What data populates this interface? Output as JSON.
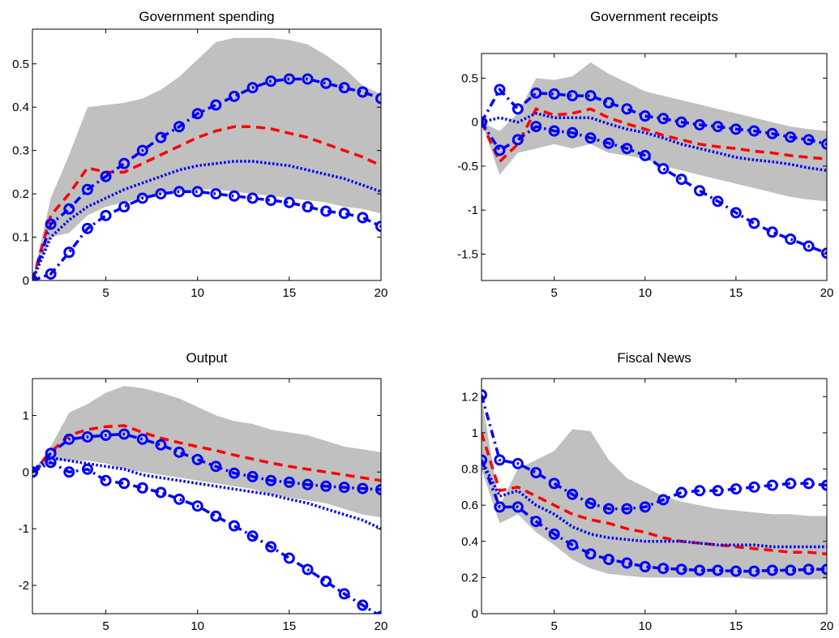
{
  "chart_data": [
    {
      "type": "line",
      "title": "Government spending",
      "xlabel": "",
      "ylabel": "",
      "xlim": [
        1,
        20
      ],
      "ylim": [
        0,
        0.58
      ],
      "xticks": [
        5,
        10,
        15,
        20
      ],
      "yticks": [
        0,
        0.1,
        0.2,
        0.3,
        0.4,
        0.5
      ],
      "ytick_labels": [
        "0",
        "0.1",
        "0.2",
        "0.3",
        "0.4",
        "0.5"
      ],
      "grid": false,
      "legend": "none",
      "x": [
        1,
        2,
        3,
        4,
        5,
        6,
        7,
        8,
        9,
        10,
        11,
        12,
        13,
        14,
        15,
        16,
        17,
        18,
        19,
        20
      ],
      "band": {
        "color": "#c0c0c0",
        "lower": [
          0,
          0.1,
          0.11,
          0.15,
          0.17,
          0.18,
          0.19,
          0.2,
          0.205,
          0.21,
          0.21,
          0.205,
          0.2,
          0.195,
          0.19,
          0.185,
          0.18,
          0.17,
          0.165,
          0.155
        ],
        "upper": [
          0,
          0.19,
          0.29,
          0.4,
          0.405,
          0.41,
          0.42,
          0.44,
          0.47,
          0.51,
          0.55,
          0.56,
          0.56,
          0.56,
          0.555,
          0.545,
          0.52,
          0.49,
          0.45,
          0.43
        ]
      },
      "series": [
        {
          "style": "dashed-red",
          "values": [
            0,
            0.15,
            0.2,
            0.26,
            0.25,
            0.25,
            0.27,
            0.29,
            0.31,
            0.33,
            0.345,
            0.355,
            0.355,
            0.35,
            0.34,
            0.33,
            0.315,
            0.3,
            0.285,
            0.265
          ]
        },
        {
          "style": "dotted-blue",
          "values": [
            0,
            0.1,
            0.14,
            0.17,
            0.19,
            0.21,
            0.225,
            0.24,
            0.255,
            0.265,
            0.27,
            0.275,
            0.275,
            0.27,
            0.265,
            0.255,
            0.245,
            0.235,
            0.22,
            0.205
          ]
        },
        {
          "style": "circle-blue",
          "values": [
            0,
            0.13,
            0.165,
            0.21,
            0.24,
            0.27,
            0.3,
            0.33,
            0.355,
            0.385,
            0.405,
            0.425,
            0.445,
            0.46,
            0.465,
            0.465,
            0.455,
            0.445,
            0.435,
            0.42
          ]
        },
        {
          "style": "circle-blue",
          "values": [
            0,
            0.015,
            0.065,
            0.12,
            0.15,
            0.17,
            0.19,
            0.2,
            0.205,
            0.205,
            0.2,
            0.195,
            0.19,
            0.185,
            0.18,
            0.17,
            0.16,
            0.155,
            0.145,
            0.125
          ]
        }
      ]
    },
    {
      "type": "line",
      "title": "Government receipts",
      "xlabel": "",
      "ylabel": "",
      "xlim": [
        1,
        20
      ],
      "ylim": [
        -1.8,
        0.78
      ],
      "xticks": [
        5,
        10,
        15,
        20
      ],
      "yticks": [
        -1.5,
        -1,
        -0.5,
        0,
        0.5
      ],
      "ytick_labels": [
        "-1.5",
        "-1",
        "-0.5",
        "0",
        "0.5"
      ],
      "grid": false,
      "legend": "none",
      "x": [
        1,
        2,
        3,
        4,
        5,
        6,
        7,
        8,
        9,
        10,
        11,
        12,
        13,
        14,
        15,
        16,
        17,
        18,
        19,
        20
      ],
      "band": {
        "color": "#c0c0c0",
        "lower": [
          0,
          -0.6,
          -0.35,
          -0.3,
          -0.25,
          -0.3,
          -0.25,
          -0.35,
          -0.38,
          -0.42,
          -0.5,
          -0.55,
          -0.6,
          -0.65,
          -0.7,
          -0.75,
          -0.8,
          -0.85,
          -0.88,
          -0.9
        ],
        "upper": [
          0,
          -0.1,
          0.1,
          0.5,
          0.48,
          0.52,
          0.68,
          0.55,
          0.45,
          0.35,
          0.3,
          0.25,
          0.2,
          0.15,
          0.1,
          0.05,
          0.0,
          -0.05,
          -0.08,
          -0.1
        ]
      },
      "series": [
        {
          "style": "dashed-red",
          "values": [
            0,
            -0.45,
            -0.25,
            0.15,
            0.08,
            0.1,
            0.15,
            0.05,
            -0.02,
            -0.08,
            -0.15,
            -0.2,
            -0.25,
            -0.28,
            -0.3,
            -0.33,
            -0.35,
            -0.38,
            -0.4,
            -0.42
          ]
        },
        {
          "style": "dotted-blue",
          "values": [
            0,
            0.05,
            0.0,
            0.1,
            0.05,
            0.05,
            0.05,
            -0.02,
            -0.08,
            -0.12,
            -0.18,
            -0.25,
            -0.3,
            -0.35,
            -0.4,
            -0.43,
            -0.45,
            -0.48,
            -0.52,
            -0.55
          ]
        },
        {
          "style": "circle-blue",
          "values": [
            0,
            0.37,
            0.15,
            0.33,
            0.32,
            0.3,
            0.3,
            0.22,
            0.15,
            0.07,
            0.04,
            0.0,
            -0.03,
            -0.05,
            -0.08,
            -0.1,
            -0.13,
            -0.17,
            -0.2,
            -0.25
          ]
        },
        {
          "style": "circle-blue",
          "values": [
            0,
            -0.32,
            -0.2,
            -0.05,
            -0.1,
            -0.12,
            -0.18,
            -0.24,
            -0.3,
            -0.38,
            -0.53,
            -0.65,
            -0.78,
            -0.9,
            -1.03,
            -1.15,
            -1.25,
            -1.33,
            -1.41,
            -1.49
          ]
        }
      ]
    },
    {
      "type": "line",
      "title": "Output",
      "xlabel": "",
      "ylabel": "",
      "xlim": [
        1,
        20
      ],
      "ylim": [
        -2.5,
        1.65
      ],
      "xticks": [
        5,
        10,
        15,
        20
      ],
      "yticks": [
        -2,
        -1,
        0,
        1
      ],
      "ytick_labels": [
        "-2",
        "-1",
        "0",
        "1"
      ],
      "grid": false,
      "legend": "none",
      "x": [
        1,
        2,
        3,
        4,
        5,
        6,
        7,
        8,
        9,
        10,
        11,
        12,
        13,
        14,
        15,
        16,
        17,
        18,
        19,
        20
      ],
      "band": {
        "color": "#c0c0c0",
        "lower": [
          0,
          0.2,
          0.2,
          0.2,
          0.15,
          0.05,
          0.0,
          -0.05,
          -0.1,
          -0.15,
          -0.2,
          -0.25,
          -0.3,
          -0.4,
          -0.45,
          -0.5,
          -0.55,
          -0.65,
          -0.75,
          -0.8
        ],
        "upper": [
          0,
          0.45,
          1.05,
          1.2,
          1.4,
          1.52,
          1.48,
          1.4,
          1.3,
          1.15,
          1.0,
          0.9,
          0.85,
          0.75,
          0.7,
          0.65,
          0.55,
          0.45,
          0.4,
          0.35
        ]
      },
      "series": [
        {
          "style": "dashed-red",
          "values": [
            0,
            0.35,
            0.65,
            0.75,
            0.8,
            0.82,
            0.7,
            0.6,
            0.52,
            0.45,
            0.38,
            0.3,
            0.23,
            0.16,
            0.1,
            0.05,
            0.0,
            -0.05,
            -0.1,
            -0.15
          ]
        },
        {
          "style": "dotted-blue",
          "values": [
            0,
            0.25,
            0.2,
            0.15,
            0.1,
            0.05,
            -0.05,
            -0.1,
            -0.15,
            -0.2,
            -0.25,
            -0.3,
            -0.35,
            -0.4,
            -0.48,
            -0.55,
            -0.65,
            -0.75,
            -0.85,
            -1.0
          ]
        },
        {
          "style": "circle-blue",
          "values": [
            0,
            0.33,
            0.58,
            0.62,
            0.65,
            0.67,
            0.58,
            0.48,
            0.35,
            0.22,
            0.1,
            -0.02,
            -0.08,
            -0.15,
            -0.18,
            -0.22,
            -0.25,
            -0.27,
            -0.29,
            -0.31
          ]
        },
        {
          "style": "circle-blue",
          "values": [
            0,
            0.17,
            0.0,
            0.05,
            -0.15,
            -0.2,
            -0.28,
            -0.36,
            -0.48,
            -0.6,
            -0.78,
            -0.95,
            -1.13,
            -1.32,
            -1.52,
            -1.72,
            -1.93,
            -2.15,
            -2.35,
            -2.55
          ]
        }
      ]
    },
    {
      "type": "line",
      "title": "Fiscal News",
      "xlabel": "",
      "ylabel": "",
      "xlim": [
        1,
        20
      ],
      "ylim": [
        0,
        1.3
      ],
      "xticks": [
        5,
        10,
        15,
        20
      ],
      "yticks": [
        0,
        0.2,
        0.4,
        0.6,
        0.8,
        1,
        1.2
      ],
      "ytick_labels": [
        "0",
        "0.2",
        "0.4",
        "0.6",
        "0.8",
        "1",
        "1.2"
      ],
      "grid": false,
      "legend": "none",
      "x": [
        1,
        2,
        3,
        4,
        5,
        6,
        7,
        8,
        9,
        10,
        11,
        12,
        13,
        14,
        15,
        16,
        17,
        18,
        19,
        20
      ],
      "band": {
        "color": "#c0c0c0",
        "lower": [
          0.8,
          0.5,
          0.55,
          0.45,
          0.38,
          0.3,
          0.25,
          0.22,
          0.21,
          0.2,
          0.2,
          0.2,
          0.2,
          0.2,
          0.2,
          0.19,
          0.19,
          0.19,
          0.19,
          0.19
        ],
        "upper": [
          1.2,
          0.6,
          0.8,
          0.85,
          0.9,
          1.02,
          1.01,
          0.85,
          0.75,
          0.7,
          0.65,
          0.62,
          0.6,
          0.58,
          0.57,
          0.56,
          0.55,
          0.55,
          0.54,
          0.54
        ]
      },
      "series": [
        {
          "style": "dashed-red",
          "values": [
            1.0,
            0.68,
            0.7,
            0.65,
            0.6,
            0.55,
            0.52,
            0.5,
            0.47,
            0.45,
            0.42,
            0.4,
            0.39,
            0.38,
            0.37,
            0.36,
            0.35,
            0.34,
            0.34,
            0.33
          ]
        },
        {
          "style": "dotted-blue",
          "values": [
            0.85,
            0.65,
            0.68,
            0.6,
            0.55,
            0.48,
            0.44,
            0.42,
            0.41,
            0.4,
            0.4,
            0.4,
            0.39,
            0.38,
            0.38,
            0.38,
            0.37,
            0.37,
            0.37,
            0.37
          ]
        },
        {
          "style": "circle-blue",
          "values": [
            1.21,
            0.85,
            0.83,
            0.78,
            0.72,
            0.66,
            0.61,
            0.58,
            0.58,
            0.59,
            0.63,
            0.67,
            0.68,
            0.68,
            0.69,
            0.7,
            0.71,
            0.72,
            0.72,
            0.71
          ]
        },
        {
          "style": "circle-blue",
          "values": [
            0.85,
            0.59,
            0.59,
            0.51,
            0.44,
            0.38,
            0.33,
            0.3,
            0.28,
            0.26,
            0.25,
            0.245,
            0.24,
            0.24,
            0.235,
            0.235,
            0.24,
            0.24,
            0.245,
            0.245
          ]
        }
      ]
    }
  ]
}
